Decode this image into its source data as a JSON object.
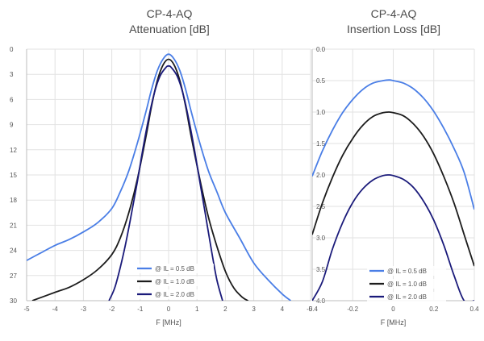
{
  "chart_data": [
    {
      "type": "line",
      "title": "CP-4-AQ",
      "subtitle": "Attenuation [dB]",
      "xlabel": "F [MHz]",
      "ylabel": "",
      "xlim": [
        -5,
        5
      ],
      "ylim": [
        0,
        30
      ],
      "y_inverted": true,
      "xticks": [
        "-5",
        "-4",
        "-3",
        "-2",
        "-1",
        "0",
        "1",
        "2",
        "3",
        "4",
        "5"
      ],
      "yticks": [
        "0",
        "3",
        "6",
        "9",
        "12",
        "15",
        "18",
        "21",
        "24",
        "27",
        "30"
      ],
      "grid": true,
      "legend_position": "bottom-center",
      "series": [
        {
          "name": "@ IL  = 0.5 dB",
          "color": "#4a7ee6",
          "x": [
            -5.0,
            -4.5,
            -4.0,
            -3.5,
            -3.0,
            -2.5,
            -2.0,
            -1.7,
            -1.4,
            -1.1,
            -0.8,
            -0.6,
            -0.4,
            -0.2,
            0.0,
            0.2,
            0.4,
            0.6,
            0.8,
            1.1,
            1.4,
            1.7,
            2.0,
            2.5,
            3.0,
            3.5,
            4.0,
            4.3
          ],
          "y": [
            25.2,
            24.3,
            23.4,
            22.7,
            21.8,
            20.7,
            19.0,
            17.0,
            14.5,
            11.2,
            7.5,
            4.8,
            2.6,
            1.2,
            0.6,
            1.2,
            2.6,
            4.8,
            7.5,
            11.2,
            14.5,
            17.0,
            19.5,
            22.5,
            25.5,
            27.5,
            29.2,
            30.0
          ]
        },
        {
          "name": "@ IL  = 1.0 dB",
          "color": "#1c1c1c",
          "x": [
            -4.8,
            -4.0,
            -3.5,
            -3.0,
            -2.5,
            -2.0,
            -1.7,
            -1.4,
            -1.1,
            -0.8,
            -0.6,
            -0.4,
            -0.2,
            0.0,
            0.2,
            0.4,
            0.6,
            0.8,
            1.1,
            1.4,
            1.7,
            2.0,
            2.3,
            2.6,
            2.8
          ],
          "y": [
            30.0,
            29.0,
            28.4,
            27.5,
            26.3,
            24.5,
            22.5,
            19.5,
            15.5,
            10.5,
            6.8,
            3.8,
            1.9,
            1.2,
            1.9,
            3.8,
            6.8,
            10.5,
            15.5,
            20.0,
            23.5,
            26.5,
            28.5,
            29.6,
            30.0
          ]
        },
        {
          "name": "@ IL  = 2.0 dB",
          "color": "#1a1a7a",
          "x": [
            -2.1,
            -1.9,
            -1.7,
            -1.5,
            -1.3,
            -1.1,
            -0.9,
            -0.7,
            -0.5,
            -0.3,
            -0.1,
            0.0,
            0.1,
            0.3,
            0.5,
            0.7,
            0.9,
            1.1,
            1.3,
            1.5,
            1.7,
            1.9
          ],
          "y": [
            30.0,
            28.5,
            26.0,
            23.0,
            19.5,
            15.8,
            11.8,
            8.2,
            5.2,
            3.2,
            2.2,
            2.0,
            2.2,
            3.2,
            5.2,
            8.2,
            11.8,
            15.8,
            19.8,
            23.8,
            27.5,
            30.0
          ]
        }
      ]
    },
    {
      "type": "line",
      "title": "CP-4-AQ",
      "subtitle": "Insertion Loss [dB]",
      "xlabel": "F [MHz]",
      "ylabel": "",
      "xlim": [
        -0.4,
        0.4
      ],
      "ylim": [
        0,
        4
      ],
      "y_inverted": true,
      "xticks": [
        "-0.4",
        "-0.2",
        "0",
        "0.2",
        "0.4"
      ],
      "yticks": [
        "0.0",
        "0.5",
        "1.0",
        "1.5",
        "2.0",
        "2.5",
        "3.0",
        "3.5",
        "4.0"
      ],
      "grid": true,
      "legend_position": "bottom-center",
      "series": [
        {
          "name": "@ IL  = 0.5 dB",
          "color": "#4a7ee6",
          "x": [
            -0.4,
            -0.35,
            -0.3,
            -0.25,
            -0.2,
            -0.15,
            -0.1,
            -0.05,
            -0.02,
            0.0,
            0.05,
            0.1,
            0.15,
            0.2,
            0.25,
            0.3,
            0.35,
            0.4
          ],
          "y": [
            2.02,
            1.62,
            1.29,
            1.01,
            0.8,
            0.64,
            0.54,
            0.5,
            0.49,
            0.5,
            0.54,
            0.63,
            0.78,
            0.99,
            1.26,
            1.58,
            1.96,
            2.55
          ]
        },
        {
          "name": "@ IL  = 1.0 dB",
          "color": "#1c1c1c",
          "x": [
            -0.4,
            -0.35,
            -0.3,
            -0.25,
            -0.2,
            -0.15,
            -0.1,
            -0.05,
            -0.02,
            0.0,
            0.05,
            0.1,
            0.15,
            0.2,
            0.25,
            0.3,
            0.35,
            0.4
          ],
          "y": [
            2.95,
            2.45,
            2.04,
            1.69,
            1.42,
            1.21,
            1.07,
            1.01,
            1.0,
            1.01,
            1.06,
            1.19,
            1.39,
            1.67,
            2.03,
            2.45,
            2.95,
            3.45
          ]
        },
        {
          "name": "@ IL  = 2.0 dB",
          "color": "#1a1a7a",
          "x": [
            -0.4,
            -0.35,
            -0.3,
            -0.25,
            -0.2,
            -0.15,
            -0.1,
            -0.05,
            -0.02,
            0.0,
            0.05,
            0.1,
            0.15,
            0.2,
            0.25,
            0.3,
            0.35,
            0.4
          ],
          "y": [
            4.0,
            3.7,
            3.18,
            2.76,
            2.44,
            2.22,
            2.08,
            2.01,
            2.0,
            2.01,
            2.07,
            2.2,
            2.42,
            2.72,
            3.12,
            3.6,
            4.0,
            4.0
          ]
        }
      ]
    }
  ]
}
